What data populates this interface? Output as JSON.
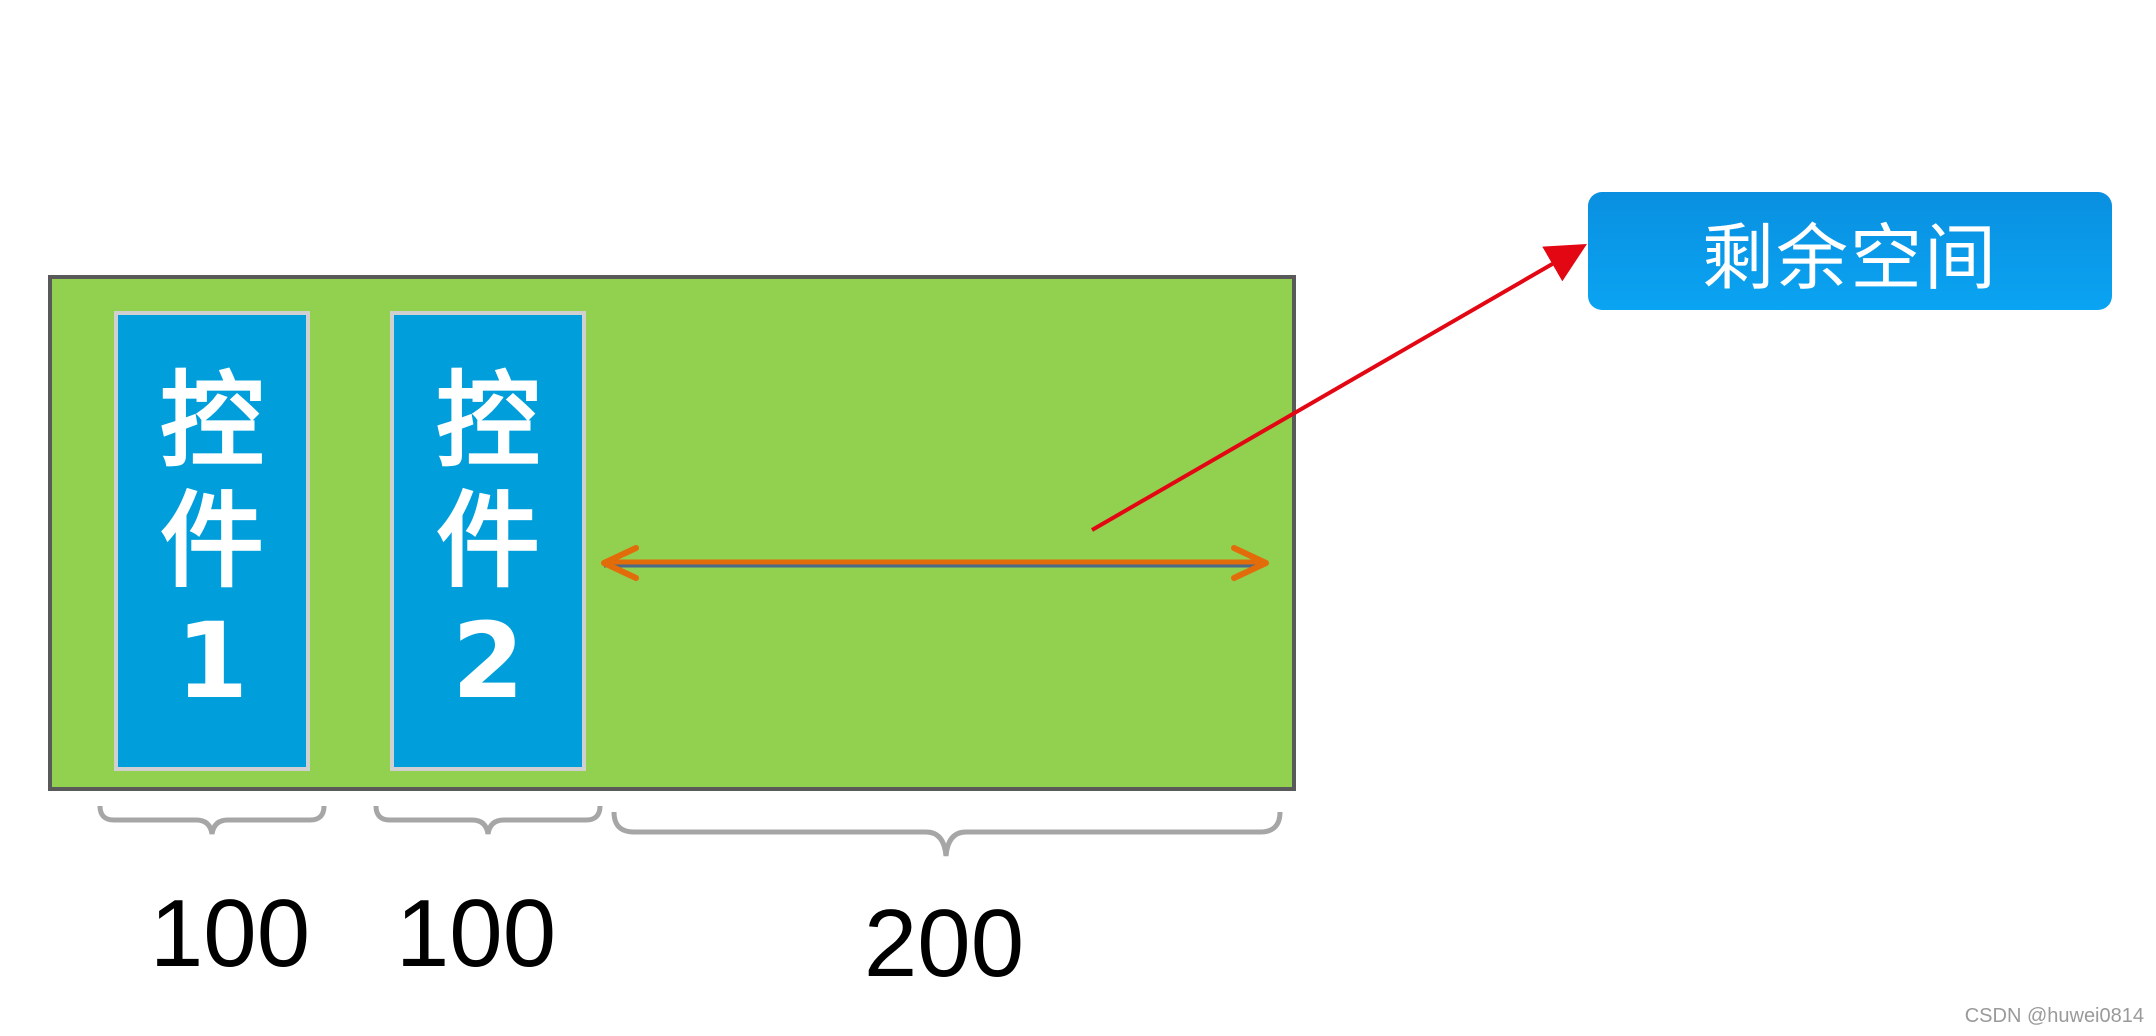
{
  "controls": [
    {
      "label_line1": "控",
      "label_line2": "件",
      "label_line3": "1"
    },
    {
      "label_line1": "控",
      "label_line2": "件",
      "label_line3": "2"
    }
  ],
  "dimensions": [
    "100",
    "100",
    "200"
  ],
  "callout": {
    "label": "剩余空间"
  },
  "watermark": "CSDN @huwei0814",
  "colors": {
    "container_fill": "#92d050",
    "container_border": "#595959",
    "control_fill": "#009fdb",
    "callout_fill": "#0aa4f2",
    "pointer_arrow": "#e30613",
    "span_arrow": "#e36c0a",
    "brace": "#a6a6a6"
  }
}
